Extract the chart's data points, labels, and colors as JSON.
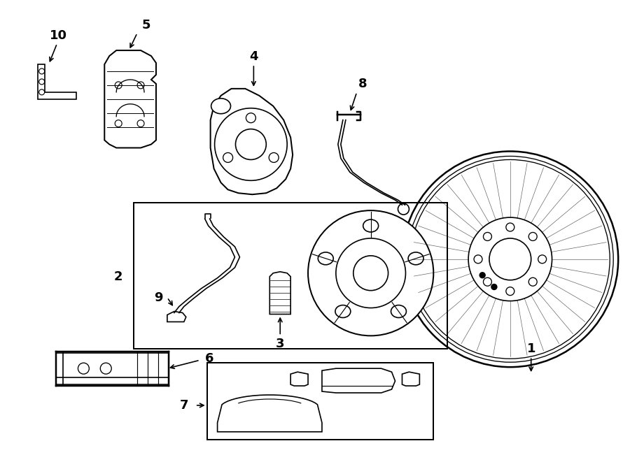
{
  "bg_color": "#ffffff",
  "lc": "#000000",
  "lw": 1.2,
  "fig_w": 9.0,
  "fig_h": 6.61,
  "dpi": 100
}
